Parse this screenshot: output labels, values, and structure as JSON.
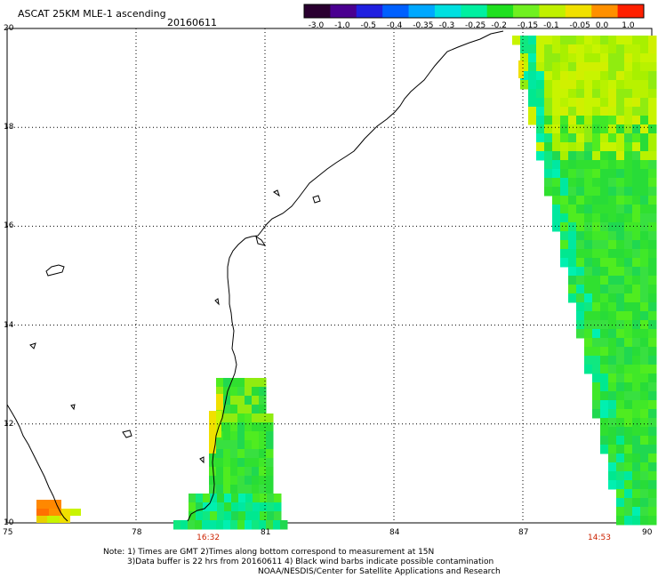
{
  "header": {
    "title": "ASCAT 25KM MLE-1 ascending",
    "date": "20160611"
  },
  "colorbar": {
    "tick_labels": [
      "-3.0",
      "-1.0",
      "-0.5",
      "-0.4",
      "-0.35",
      "-0.3",
      "-0.25",
      "-0.2",
      "-0.15",
      "-0.1",
      "-0.05",
      "0.0",
      "1.0"
    ],
    "colors": [
      "#2a0030",
      "#4a0090",
      "#2020e0",
      "#0060ff",
      "#00a8ff",
      "#00e0e0",
      "#00f0a0",
      "#20e020",
      "#70f020",
      "#c0f000",
      "#f0e000",
      "#ff9000",
      "#ff2000"
    ]
  },
  "axes": {
    "lon_labels": [
      "75",
      "78",
      "81",
      "84",
      "87",
      "90"
    ],
    "lat_labels": [
      "20",
      "18",
      "16",
      "14",
      "12",
      "10"
    ],
    "lon_range": [
      75,
      90
    ],
    "lat_range": [
      10,
      20
    ]
  },
  "pass_times": [
    {
      "time": "16:32",
      "lon": 79.7
    },
    {
      "time": "14:53",
      "lon": 88.8
    }
  ],
  "notes": [
    "Note: 1) Times are GMT 2)Times along bottom correspond to measurement at 15N",
    "3)Data buffer is 22 hrs from 20160611 4) Black wind barbs indicate possible contamination",
    "NOAA/NESDIS/Center for Satellite Applications and Research"
  ]
}
